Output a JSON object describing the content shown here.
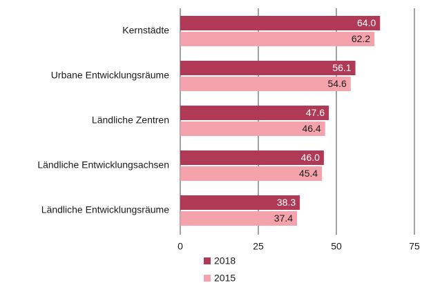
{
  "chart_data": {
    "type": "bar",
    "orientation": "horizontal",
    "categories": [
      "Kernstädte",
      "Urbane Entwicklungsräume",
      "Ländliche Zentren",
      "Ländliche Entwicklungsachsen",
      "Ländliche Entwicklungsräume"
    ],
    "series": [
      {
        "name": "2018",
        "color": "#b03a55",
        "label_color": "#ffffff",
        "values": [
          64.0,
          56.1,
          47.6,
          46.0,
          38.3
        ],
        "value_labels": [
          "64.0",
          "56.1",
          "47.6",
          "46.0",
          "38.3"
        ]
      },
      {
        "name": "2015",
        "color": "#f4a3ad",
        "label_color": "#1a1a1a",
        "values": [
          62.2,
          54.6,
          46.4,
          45.4,
          37.4
        ],
        "value_labels": [
          "62.2",
          "54.6",
          "46.4",
          "45.4",
          "37.4"
        ]
      }
    ],
    "xlim": [
      0,
      75
    ],
    "xticks": [
      0,
      25,
      50,
      75
    ],
    "grid": true
  }
}
